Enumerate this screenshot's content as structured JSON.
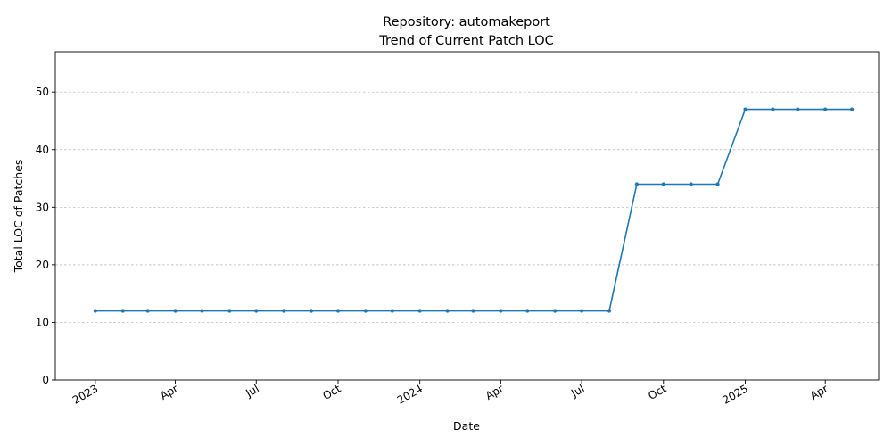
{
  "chart_data": {
    "type": "line",
    "title": "Repository: automakeport",
    "subtitle": "Trend of Current Patch LOC",
    "xlabel": "Date",
    "ylabel": "Total LOC of Patches",
    "ylim": [
      0,
      57
    ],
    "yticks": [
      0,
      10,
      20,
      30,
      40,
      50
    ],
    "xlim": [
      "2022-11-17",
      "2025-05-31"
    ],
    "xticks": [
      {
        "date": "2023-01-01",
        "label": "2023"
      },
      {
        "date": "2023-04-01",
        "label": "Apr"
      },
      {
        "date": "2023-07-01",
        "label": "Jul"
      },
      {
        "date": "2023-10-01",
        "label": "Oct"
      },
      {
        "date": "2024-01-01",
        "label": "2024"
      },
      {
        "date": "2024-04-01",
        "label": "Apr"
      },
      {
        "date": "2024-07-01",
        "label": "Jul"
      },
      {
        "date": "2024-10-01",
        "label": "Oct"
      },
      {
        "date": "2025-01-01",
        "label": "2025"
      },
      {
        "date": "2025-04-01",
        "label": "Apr"
      }
    ],
    "grid": "horizontal dashed",
    "color": "#1f77b4",
    "series": [
      {
        "x": [
          "2023-01-01",
          "2023-02-01",
          "2023-03-01",
          "2023-04-01",
          "2023-05-01",
          "2023-06-01",
          "2023-07-01",
          "2023-08-01",
          "2023-09-01",
          "2023-10-01",
          "2023-11-01",
          "2023-12-01",
          "2024-01-01",
          "2024-02-01",
          "2024-03-01",
          "2024-04-01",
          "2024-05-01",
          "2024-06-01",
          "2024-07-01",
          "2024-08-01",
          "2024-09-01",
          "2024-10-01",
          "2024-11-01",
          "2024-12-01",
          "2025-01-01",
          "2025-02-01",
          "2025-03-01",
          "2025-04-01",
          "2025-05-01"
        ],
        "values": [
          12,
          12,
          12,
          12,
          12,
          12,
          12,
          12,
          12,
          12,
          12,
          12,
          12,
          12,
          12,
          12,
          12,
          12,
          12,
          12,
          34,
          34,
          34,
          34,
          47,
          47,
          47,
          47,
          47
        ]
      }
    ]
  }
}
